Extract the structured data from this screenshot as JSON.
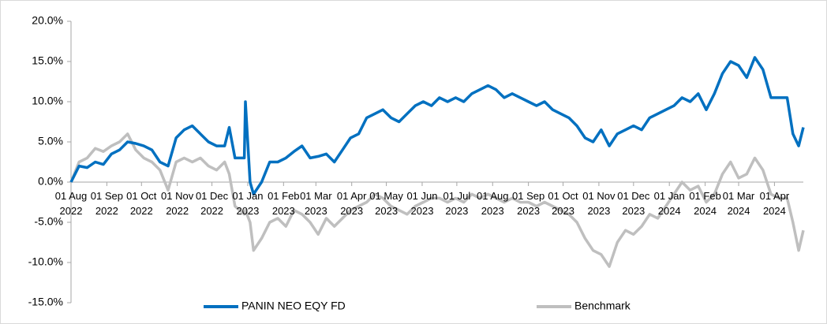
{
  "chart_data": {
    "type": "line",
    "x": [
      "2022-08-01",
      "2022-08-08",
      "2022-08-15",
      "2022-08-22",
      "2022-08-29",
      "2022-09-05",
      "2022-09-12",
      "2022-09-19",
      "2022-09-26",
      "2022-10-03",
      "2022-10-10",
      "2022-10-17",
      "2022-10-24",
      "2022-10-31",
      "2022-11-07",
      "2022-11-14",
      "2022-11-21",
      "2022-11-28",
      "2022-12-05",
      "2022-12-12",
      "2022-12-16",
      "2022-12-21",
      "2022-12-29",
      "2022-12-30",
      "2023-01-03",
      "2023-01-06",
      "2023-01-13",
      "2023-01-20",
      "2023-01-27",
      "2023-02-03",
      "2023-02-10",
      "2023-02-17",
      "2023-02-24",
      "2023-03-03",
      "2023-03-10",
      "2023-03-17",
      "2023-03-24",
      "2023-03-31",
      "2023-04-07",
      "2023-04-14",
      "2023-04-21",
      "2023-04-28",
      "2023-05-05",
      "2023-05-12",
      "2023-05-19",
      "2023-05-26",
      "2023-06-02",
      "2023-06-09",
      "2023-06-16",
      "2023-06-23",
      "2023-06-30",
      "2023-07-07",
      "2023-07-14",
      "2023-07-21",
      "2023-07-28",
      "2023-08-04",
      "2023-08-11",
      "2023-08-18",
      "2023-08-25",
      "2023-09-01",
      "2023-09-08",
      "2023-09-15",
      "2023-09-22",
      "2023-09-29",
      "2023-10-06",
      "2023-10-13",
      "2023-10-20",
      "2023-10-27",
      "2023-11-03",
      "2023-11-10",
      "2023-11-17",
      "2023-11-24",
      "2023-12-01",
      "2023-12-08",
      "2023-12-15",
      "2023-12-22",
      "2023-12-29",
      "2024-01-05",
      "2024-01-12",
      "2024-01-19",
      "2024-01-26",
      "2024-02-02",
      "2024-02-09",
      "2024-02-16",
      "2024-02-23",
      "2024-03-01",
      "2024-03-08",
      "2024-03-15",
      "2024-03-22",
      "2024-03-29",
      "2024-04-05",
      "2024-04-12",
      "2024-04-17",
      "2024-04-22",
      "2024-04-26"
    ],
    "series": [
      {
        "name": "PANIN NEO EQY FD",
        "color": "#0070c0",
        "values": [
          0,
          2,
          1.8,
          2.5,
          2.2,
          3.5,
          4,
          5,
          4.8,
          4.5,
          4,
          2.5,
          2,
          5.5,
          6.5,
          7,
          6,
          5,
          4.5,
          4.5,
          6.8,
          3,
          3,
          10,
          0,
          -1.5,
          0,
          2.5,
          2.5,
          3,
          3.8,
          4.5,
          3,
          3.2,
          3.5,
          2.5,
          4,
          5.5,
          6,
          8,
          8.5,
          9,
          8,
          7.5,
          8.5,
          9.5,
          10,
          9.5,
          10.5,
          10,
          10.5,
          10,
          11,
          11.5,
          12,
          11.5,
          10.5,
          11,
          10.5,
          10,
          9.5,
          10,
          9,
          8.5,
          8,
          7,
          5.5,
          5,
          6.5,
          4.5,
          6,
          6.5,
          7,
          6.5,
          8,
          8.5,
          9,
          9.5,
          10.5,
          10,
          11,
          9,
          11,
          13.5,
          15,
          14.5,
          13,
          15.5,
          14,
          10.5,
          10.5,
          10.5,
          6,
          4.5,
          6.8
        ]
      },
      {
        "name": "Benchmark",
        "color": "#bfbfbf",
        "values": [
          0,
          2.5,
          3,
          4.2,
          3.8,
          4.5,
          5,
          6,
          4,
          3,
          2.5,
          1.5,
          -1,
          2.5,
          3,
          2.5,
          3,
          2,
          1.5,
          2.5,
          1,
          -3,
          -4,
          -3.5,
          -5,
          -8.5,
          -7,
          -5,
          -4.5,
          -5.5,
          -3.5,
          -4,
          -5,
          -6.5,
          -4.5,
          -5.5,
          -4.5,
          -3.5,
          -3,
          -2.5,
          -1.5,
          -2,
          -3,
          -3.5,
          -4,
          -3,
          -2.5,
          -2,
          -2,
          -2.5,
          -2,
          -2.5,
          -1.5,
          -2,
          -1.5,
          -2,
          -2.5,
          -2,
          -2.5,
          -2.5,
          -3,
          -2.5,
          -3,
          -3.5,
          -4,
          -5,
          -7,
          -8.5,
          -9,
          -10.5,
          -7.5,
          -6,
          -6.5,
          -5.5,
          -4,
          -4.5,
          -3,
          -1.5,
          0,
          -1,
          -0.5,
          -2.5,
          -1.5,
          1,
          2.5,
          0.5,
          1,
          3,
          1.5,
          -1.5,
          -2,
          -2,
          -5,
          -8.5,
          -6
        ]
      }
    ],
    "xlim": [
      "2022-08-01",
      "2024-04-26"
    ],
    "xticks": [
      {
        "value": "2022-08-01",
        "label": "01 Aug 2022"
      },
      {
        "value": "2022-09-01",
        "label": "01 Sep 2022"
      },
      {
        "value": "2022-10-01",
        "label": "01 Oct 2022"
      },
      {
        "value": "2022-11-01",
        "label": "01 Nov 2022"
      },
      {
        "value": "2022-12-01",
        "label": "01 Dec 2022"
      },
      {
        "value": "2023-01-01",
        "label": "01 Jan 2023"
      },
      {
        "value": "2023-02-01",
        "label": "01 Feb 2023"
      },
      {
        "value": "2023-03-01",
        "label": "01 Mar 2023"
      },
      {
        "value": "2023-04-01",
        "label": "01 Apr 2023"
      },
      {
        "value": "2023-05-01",
        "label": "01 May 2023"
      },
      {
        "value": "2023-06-01",
        "label": "01 Jun 2023"
      },
      {
        "value": "2023-07-01",
        "label": "01 Jul 2023"
      },
      {
        "value": "2023-08-01",
        "label": "01 Aug 2023"
      },
      {
        "value": "2023-09-01",
        "label": "01 Sep 2023"
      },
      {
        "value": "2023-10-01",
        "label": "01 Oct 2023"
      },
      {
        "value": "2023-11-01",
        "label": "01 Nov 2023"
      },
      {
        "value": "2023-12-01",
        "label": "01 Dec 2023"
      },
      {
        "value": "2024-01-01",
        "label": "01 Jan 2024"
      },
      {
        "value": "2024-02-01",
        "label": "01 Feb 2024"
      },
      {
        "value": "2024-03-01",
        "label": "01 Mar 2024"
      },
      {
        "value": "2024-04-01",
        "label": "01 Apr 2024"
      }
    ],
    "ylim": [
      -15,
      20
    ],
    "yticks": [
      {
        "value": -15,
        "label": "-15.0%"
      },
      {
        "value": -10,
        "label": "-10.0%"
      },
      {
        "value": -5,
        "label": "-5.0%"
      },
      {
        "value": 0,
        "label": "0.0%"
      },
      {
        "value": 5,
        "label": "5.0%"
      },
      {
        "value": 10,
        "label": "10.0%"
      },
      {
        "value": 15,
        "label": "15.0%"
      },
      {
        "value": 20,
        "label": "20.0%"
      }
    ],
    "grid": false,
    "legend": "bottom"
  }
}
